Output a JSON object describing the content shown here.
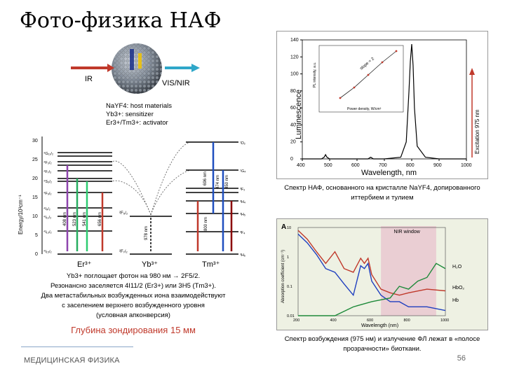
{
  "slide": {
    "title": "Фото-физика НАФ",
    "footer": "МЕДИЦИНСКАЯ ФИЗИКА",
    "page_number": "56"
  },
  "nanoparticle": {
    "input_label": "IR",
    "output_label": "VIS/NIR",
    "legend": [
      "NaYF4: host materials",
      "Yb3+: sensitizer",
      "Er3+/Tm3+: activator"
    ],
    "colors": {
      "ir_arrow": "#c0392b",
      "vis_arrow": "#2fa7c9"
    }
  },
  "energy_diagram": {
    "ylabel": "Energy/10³cm⁻¹",
    "yticks": [
      "0",
      "5",
      "10",
      "15",
      "20",
      "25",
      "30"
    ],
    "ions": [
      "Er³⁺",
      "Yb³⁺",
      "Tm³⁺"
    ],
    "er_levels": [
      "⁴G₁₁/₂",
      "²H₉/₂",
      "⁴F₃/₂",
      "⁴F₅/₂",
      "⁴F₇/₂",
      "²H₁₁/₂",
      "⁴S₃/₂",
      "⁴F₉/₂",
      "⁴I₉/₂",
      "⁴I₁₁/₂",
      "⁴I₁₃/₂",
      "⁴I₁₅/₂"
    ],
    "yb_levels": [
      "²F₅/₂",
      "²F₇/₂"
    ],
    "tm_levels": [
      "¹D₂",
      "¹G₄",
      "³F₂",
      "³F₃",
      "³H₄",
      "³H₅",
      "³F₄",
      "³H₆"
    ],
    "er_emissions": [
      "408 nm",
      "523 nm",
      "541 nm",
      "656 nm"
    ],
    "yb_emission": "978 nm",
    "tm_emissions": [
      "696 nm",
      "474 nm",
      "450 nm",
      "800 nm"
    ]
  },
  "spectrum": {
    "caption": "Спектр НАФ, основанного на кристалле NaYF4, допированного иттербием и тулием",
    "excitation_label": "Excitation 975 nm",
    "inset": {
      "ylabel": "PL intensity, a.u.",
      "xlabel": "Power density, W/cm²",
      "slope_label": "slope ≈ 2"
    },
    "chart_data": {
      "type": "line",
      "xlabel": "Wavelength, nm",
      "ylabel": "Luminescence",
      "xlim": [
        400,
        1000
      ],
      "ylim": [
        0,
        140
      ],
      "xticks": [
        400,
        500,
        600,
        700,
        800,
        900,
        1000
      ],
      "yticks": [
        0,
        20,
        40,
        60,
        80,
        100,
        120,
        140
      ],
      "x": [
        400,
        470,
        480,
        485,
        490,
        500,
        550,
        640,
        650,
        660,
        700,
        760,
        780,
        790,
        795,
        800,
        805,
        810,
        820,
        850,
        900,
        1000
      ],
      "y": [
        0,
        0,
        2,
        5,
        2,
        0,
        0,
        0,
        2,
        0,
        0,
        2,
        20,
        80,
        115,
        135,
        110,
        60,
        15,
        2,
        0,
        0
      ]
    }
  },
  "absorption": {
    "panel_label": "A",
    "nir_window_label": "NIR window",
    "caption": "Спектр возбуждения (975 нм) и излучение ФЛ лежат в «полосе прозрачности» биоткани.",
    "chart_data": {
      "type": "line",
      "xlabel": "Wavelength (nm)",
      "ylabel": "Absorption coefficient (cm⁻¹)",
      "xlim": [
        200,
        1000
      ],
      "ylim": [
        0.01,
        10
      ],
      "scale": "log",
      "xticks": [
        200,
        400,
        600,
        800,
        1000
      ],
      "yticks": [
        0.01,
        0.1,
        1,
        10
      ],
      "series": [
        {
          "name": "Hb",
          "x": [
            200,
            250,
            300,
            350,
            400,
            450,
            500,
            540,
            560,
            580,
            600,
            650,
            700,
            750,
            800,
            900,
            1000
          ],
          "y": [
            6,
            3,
            1.2,
            0.4,
            0.3,
            0.12,
            0.05,
            0.5,
            0.4,
            0.6,
            0.15,
            0.05,
            0.03,
            0.03,
            0.02,
            0.02,
            0.015
          ]
        },
        {
          "name": "HbO₂",
          "x": [
            200,
            250,
            300,
            350,
            400,
            450,
            500,
            540,
            560,
            580,
            600,
            650,
            700,
            750,
            800,
            900,
            1000
          ],
          "y": [
            8,
            4,
            1.5,
            0.6,
            1.5,
            0.4,
            0.3,
            0.9,
            0.6,
            0.9,
            0.25,
            0.08,
            0.06,
            0.05,
            0.06,
            0.08,
            0.07
          ]
        },
        {
          "name": "H₂O",
          "x": [
            200,
            400,
            500,
            600,
            700,
            750,
            800,
            850,
            900,
            950,
            1000
          ],
          "y": [
            0.01,
            0.01,
            0.02,
            0.03,
            0.04,
            0.1,
            0.08,
            0.15,
            0.2,
            0.6,
            0.4
          ]
        }
      ]
    }
  },
  "description": {
    "lines": [
      "Yb3+ поглощает фотон на 980 нм → 2F5/2.",
      "Резонансно заселяется 4I11/2 (Er3+) или 3H5 (Tm3+).",
      "Два метастабильных возбужденных иона взаимодействуют",
      "с заселением верхнего возбужденного уровня",
      "(условная апконверсия)"
    ],
    "depth": "Глубина зондирования 15 мм"
  }
}
